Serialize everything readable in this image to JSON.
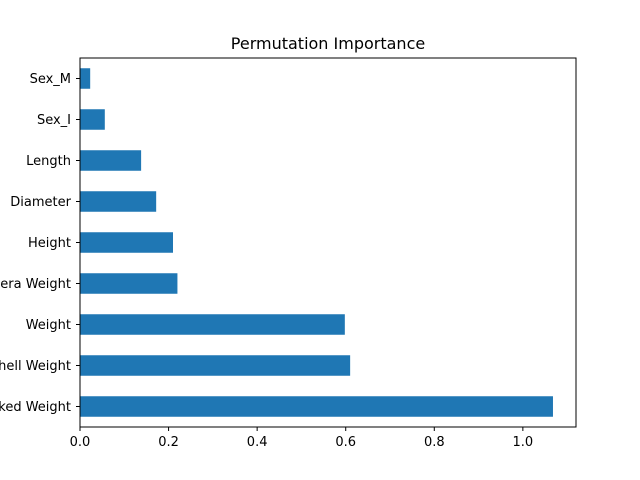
{
  "chart_data": {
    "type": "bar",
    "orientation": "horizontal",
    "title": "Permutation Importance",
    "xlabel": "",
    "ylabel": "",
    "categories": [
      "Sex_M",
      "Sex_I",
      "Length",
      "Diameter",
      "Height",
      "Viscera Weight",
      "Weight",
      "Shell Weight",
      "Shucked Weight"
    ],
    "values": [
      0.023,
      0.056,
      0.138,
      0.172,
      0.21,
      0.22,
      0.598,
      0.61,
      1.068
    ],
    "xlim": [
      0.0,
      1.12
    ],
    "xticks": [
      0.0,
      0.2,
      0.4,
      0.6,
      0.8,
      1.0
    ],
    "xtick_labels": [
      "0.0",
      "0.2",
      "0.4",
      "0.6",
      "0.8",
      "1.0"
    ],
    "bar_color": "#1f77b4",
    "grid": false,
    "legend": "none"
  }
}
